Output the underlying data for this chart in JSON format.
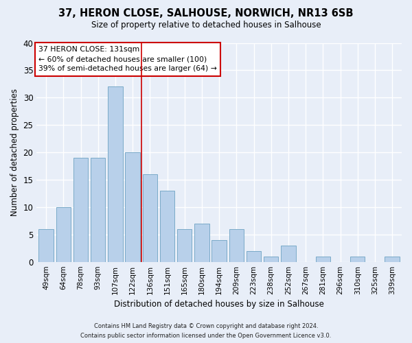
{
  "title1": "37, HERON CLOSE, SALHOUSE, NORWICH, NR13 6SB",
  "title2": "Size of property relative to detached houses in Salhouse",
  "xlabel": "Distribution of detached houses by size in Salhouse",
  "ylabel": "Number of detached properties",
  "categories": [
    "49sqm",
    "64sqm",
    "78sqm",
    "93sqm",
    "107sqm",
    "122sqm",
    "136sqm",
    "151sqm",
    "165sqm",
    "180sqm",
    "194sqm",
    "209sqm",
    "223sqm",
    "238sqm",
    "252sqm",
    "267sqm",
    "281sqm",
    "296sqm",
    "310sqm",
    "325sqm",
    "339sqm"
  ],
  "values": [
    6,
    10,
    19,
    19,
    32,
    20,
    16,
    13,
    6,
    7,
    4,
    6,
    2,
    1,
    3,
    0,
    1,
    0,
    1,
    0,
    1
  ],
  "bar_color": "#b8d0ea",
  "bar_edge_color": "#7aaac8",
  "property_line_x": 5.5,
  "property_line_color": "#cc0000",
  "annotation_text": "37 HERON CLOSE: 131sqm\n← 60% of detached houses are smaller (100)\n39% of semi-detached houses are larger (64) →",
  "annotation_box_facecolor": "#ffffff",
  "annotation_box_edgecolor": "#cc0000",
  "ylim": [
    0,
    40
  ],
  "yticks": [
    0,
    5,
    10,
    15,
    20,
    25,
    30,
    35,
    40
  ],
  "background_color": "#e8eef8",
  "grid_color": "#ffffff",
  "footer1": "Contains HM Land Registry data © Crown copyright and database right 2024.",
  "footer2": "Contains public sector information licensed under the Open Government Licence v3.0."
}
